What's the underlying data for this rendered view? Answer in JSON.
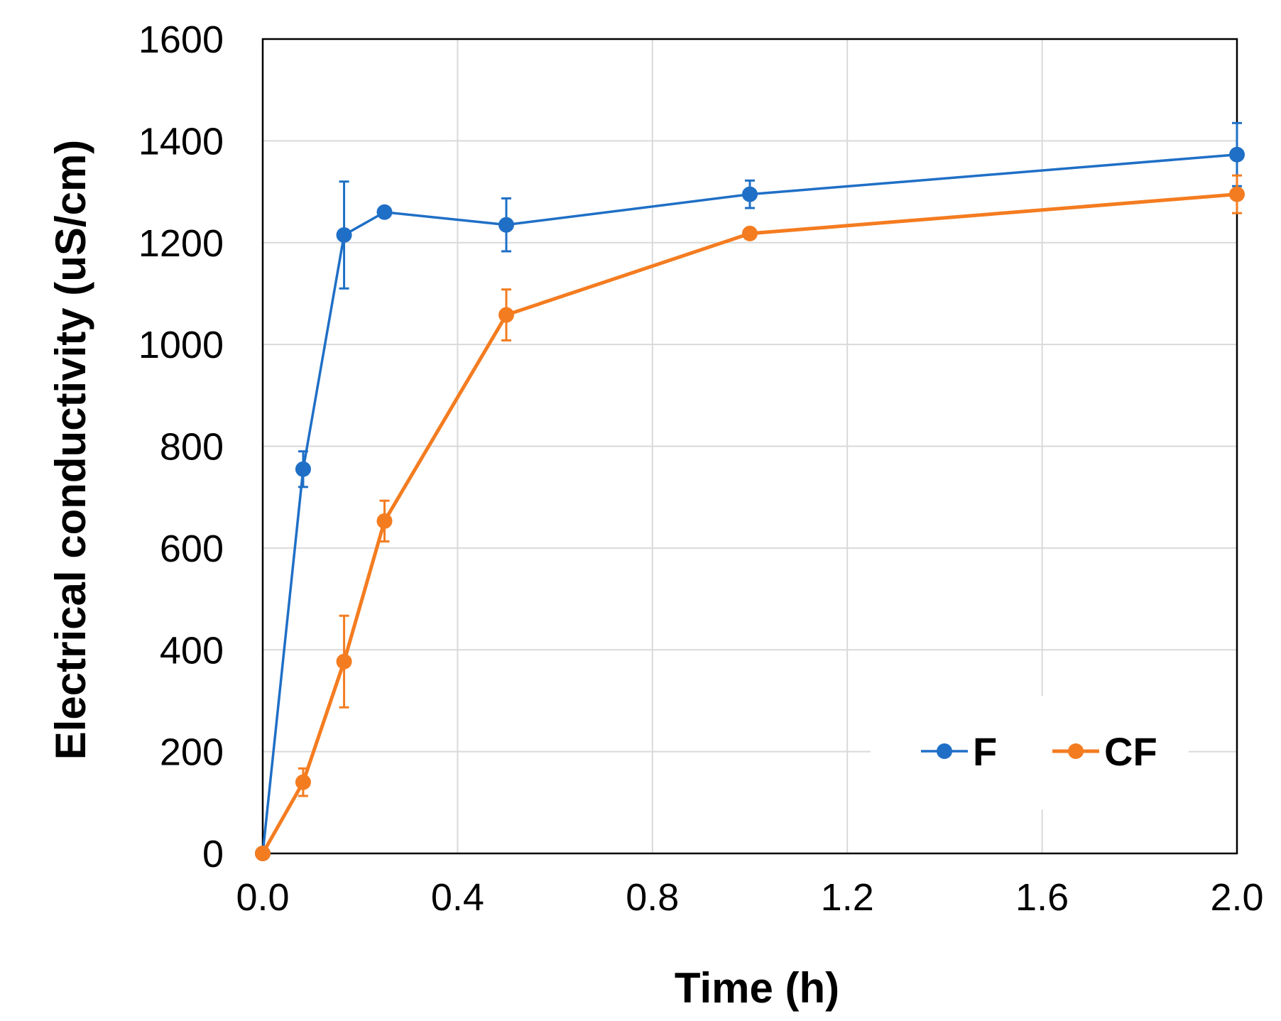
{
  "chart_data": {
    "type": "line",
    "title": "",
    "xlabel": "Time (h)",
    "ylabel": "Electrical conductivity (uS/cm)",
    "xlim": [
      0,
      2.0
    ],
    "ylim": [
      0,
      1600
    ],
    "x_ticks": [
      "0.0",
      "0.4",
      "0.8",
      "1.2",
      "1.6",
      "2.0"
    ],
    "y_ticks": [
      "0",
      "200",
      "400",
      "600",
      "800",
      "1000",
      "1200",
      "1400",
      "1600"
    ],
    "grid": true,
    "legend_position": "bottom-right",
    "series": [
      {
        "name": "F",
        "color": "#1f6fc6",
        "x": [
          0,
          0.083,
          0.167,
          0.25,
          0.5,
          1.0,
          2.0
        ],
        "y": [
          0,
          755,
          1215,
          1260,
          1235,
          1295,
          1373
        ],
        "err": [
          0,
          35,
          105,
          0,
          52,
          27,
          62
        ]
      },
      {
        "name": "CF",
        "color": "#f47c20",
        "x": [
          0,
          0.083,
          0.167,
          0.25,
          0.5,
          1.0,
          2.0
        ],
        "y": [
          0,
          140,
          377,
          653,
          1058,
          1218,
          1295
        ],
        "err": [
          0,
          27,
          90,
          40,
          50,
          0,
          37
        ]
      }
    ]
  }
}
